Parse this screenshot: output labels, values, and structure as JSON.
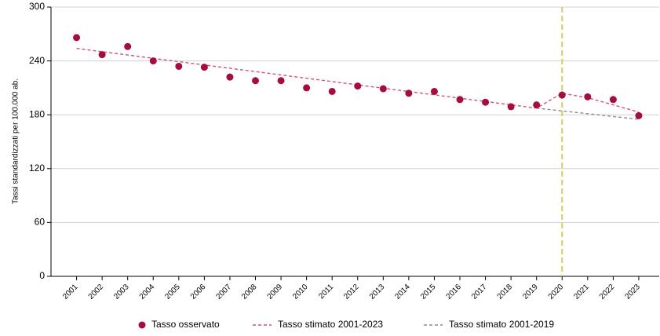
{
  "chart_data": {
    "type": "line",
    "y_label": "Tassi standardizzati per 100.000 ab.",
    "x": [
      2001,
      2002,
      2003,
      2004,
      2005,
      2006,
      2007,
      2008,
      2009,
      2010,
      2011,
      2012,
      2013,
      2014,
      2015,
      2016,
      2017,
      2018,
      2019,
      2020,
      2021,
      2022,
      2023
    ],
    "xlim": [
      2000,
      2023.8
    ],
    "xticks": [
      2001,
      2002,
      2003,
      2004,
      2005,
      2006,
      2007,
      2008,
      2009,
      2010,
      2011,
      2012,
      2013,
      2014,
      2015,
      2016,
      2017,
      2018,
      2019,
      2020,
      2021,
      2022,
      2023
    ],
    "ylim": [
      0,
      300
    ],
    "yticks": [
      0,
      60,
      120,
      180,
      240,
      300
    ],
    "grid": true,
    "vline": {
      "x": 2020,
      "color": "#dcc766"
    },
    "series": [
      {
        "name": "Tasso osservato",
        "style": "markers",
        "color": "#a50d3c",
        "values": [
          266,
          247,
          256,
          240,
          234,
          233,
          222,
          218,
          218,
          210,
          206,
          212,
          209,
          204,
          206,
          197,
          194,
          189,
          191,
          202,
          200,
          197,
          179
        ]
      },
      {
        "name": "Tasso stimato 2001-2023",
        "style": "dashed",
        "color": "#d9506e",
        "values": [
          254,
          250.3,
          246.6,
          242.9,
          239.2,
          235.5,
          231.8,
          228.1,
          224.4,
          220.7,
          217,
          213.3,
          209.6,
          205.9,
          202.2,
          198.5,
          194.8,
          191.1,
          187.4,
          204,
          199,
          191,
          183
        ]
      },
      {
        "name": "Tasso stimato 2001-2019",
        "style": "dashed",
        "color": "#8c8c8c",
        "values": [
          null,
          null,
          null,
          null,
          null,
          null,
          null,
          null,
          null,
          null,
          null,
          null,
          null,
          null,
          null,
          null,
          null,
          null,
          187.4,
          184.3,
          181.2,
          178.1,
          175
        ]
      }
    ],
    "legend": "bottom"
  }
}
